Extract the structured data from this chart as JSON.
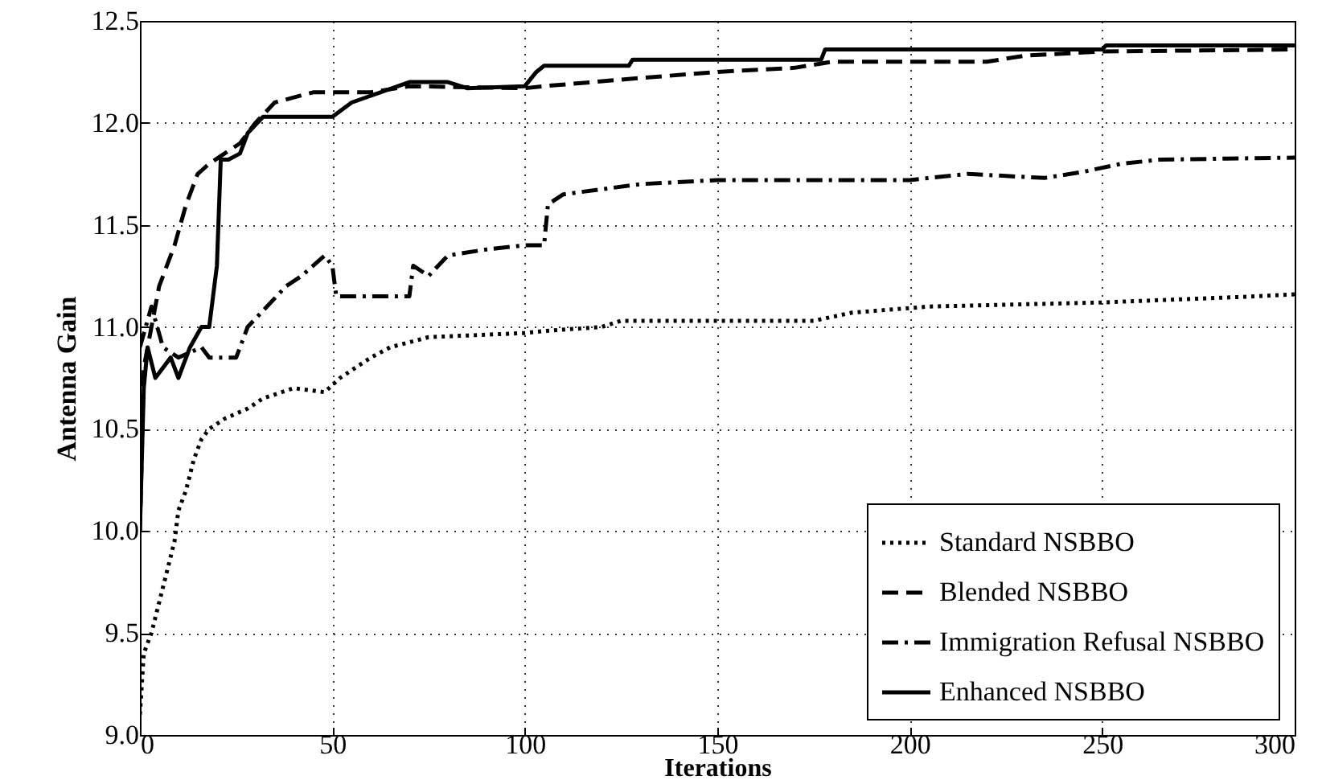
{
  "chart_data": {
    "type": "line",
    "xlabel": "Iterations",
    "ylabel": "Antenna Gain",
    "xlim": [
      0,
      300
    ],
    "xticks": [
      0,
      50,
      100,
      150,
      200,
      250,
      300
    ],
    "ylim": [
      9.0,
      12.5
    ],
    "yticks": [
      {
        "value": 9.0,
        "label": "9.0"
      },
      {
        "value": 9.5,
        "label": "9.5"
      },
      {
        "value": 10.0,
        "label": "10.0"
      },
      {
        "value": 10.5,
        "label": "10.5"
      },
      {
        "value": 11.0,
        "label": "11.0"
      },
      {
        "value": 11.5,
        "label": "11.5"
      },
      {
        "value": 12.0,
        "label": "12.0"
      },
      {
        "value": 12.5,
        "label": "12.5"
      }
    ],
    "grid": true,
    "legend": "bottom right",
    "series": [
      {
        "name": "Standard NSBBO",
        "color": "#000000",
        "line_style": "dotted",
        "x": [
          0,
          1,
          3,
          5,
          7,
          9,
          10,
          12,
          14,
          16,
          18,
          22,
          28,
          32,
          40,
          48,
          52,
          56,
          60,
          65,
          75,
          100,
          105,
          120,
          125,
          175,
          185,
          205,
          250,
          290,
          300
        ],
        "values": [
          9.1,
          9.4,
          9.5,
          9.65,
          9.8,
          9.95,
          10.1,
          10.2,
          10.35,
          10.45,
          10.5,
          10.55,
          10.6,
          10.65,
          10.7,
          10.68,
          10.75,
          10.8,
          10.85,
          10.9,
          10.95,
          10.97,
          10.98,
          11.0,
          11.03,
          11.03,
          11.07,
          11.1,
          11.12,
          11.15,
          11.16
        ]
      },
      {
        "name": "Blended NSBBO",
        "color": "#000000",
        "line_style": "dashed",
        "x": [
          0,
          1,
          3,
          5,
          7,
          9,
          12,
          15,
          18,
          22,
          26,
          30,
          35,
          45,
          60,
          70,
          100,
          105,
          130,
          150,
          170,
          180,
          220,
          230,
          250,
          300
        ],
        "values": [
          10.0,
          10.8,
          11.0,
          11.2,
          11.3,
          11.4,
          11.6,
          11.75,
          11.8,
          11.85,
          11.9,
          12.0,
          12.1,
          12.15,
          12.15,
          12.18,
          12.17,
          12.18,
          12.22,
          12.25,
          12.27,
          12.3,
          12.3,
          12.33,
          12.35,
          12.36
        ]
      },
      {
        "name": "Immigration Refusal NSBBO",
        "color": "#000000",
        "line_style": "dashdot",
        "x": [
          0,
          3,
          6,
          10,
          16,
          18,
          22,
          25,
          28,
          33,
          38,
          42,
          48,
          50,
          51,
          60,
          70,
          71,
          75,
          80,
          90,
          100,
          105,
          106,
          110,
          130,
          150,
          200,
          215,
          235,
          245,
          255,
          265,
          300
        ],
        "values": [
          10.9,
          11.1,
          10.9,
          10.85,
          10.9,
          10.85,
          10.85,
          10.85,
          11.0,
          11.1,
          11.2,
          11.25,
          11.35,
          11.3,
          11.15,
          11.15,
          11.15,
          11.3,
          11.25,
          11.35,
          11.38,
          11.4,
          11.4,
          11.6,
          11.65,
          11.7,
          11.72,
          11.72,
          11.75,
          11.73,
          11.76,
          11.8,
          11.82,
          11.83
        ]
      },
      {
        "name": "Enhanced NSBBO",
        "color": "#000000",
        "line_style": "solid",
        "x": [
          0,
          1,
          2,
          4,
          8,
          10,
          13,
          16,
          18,
          20,
          21,
          23,
          26,
          28,
          32,
          50,
          55,
          70,
          80,
          85,
          100,
          103,
          105,
          127,
          128,
          177,
          178,
          250,
          251,
          300
        ],
        "values": [
          10.0,
          10.7,
          10.9,
          10.75,
          10.85,
          10.75,
          10.9,
          11.0,
          11.0,
          11.3,
          11.82,
          11.82,
          11.85,
          11.95,
          12.03,
          12.03,
          12.1,
          12.2,
          12.2,
          12.17,
          12.18,
          12.25,
          12.28,
          12.28,
          12.31,
          12.31,
          12.36,
          12.36,
          12.38,
          12.38
        ]
      }
    ]
  }
}
